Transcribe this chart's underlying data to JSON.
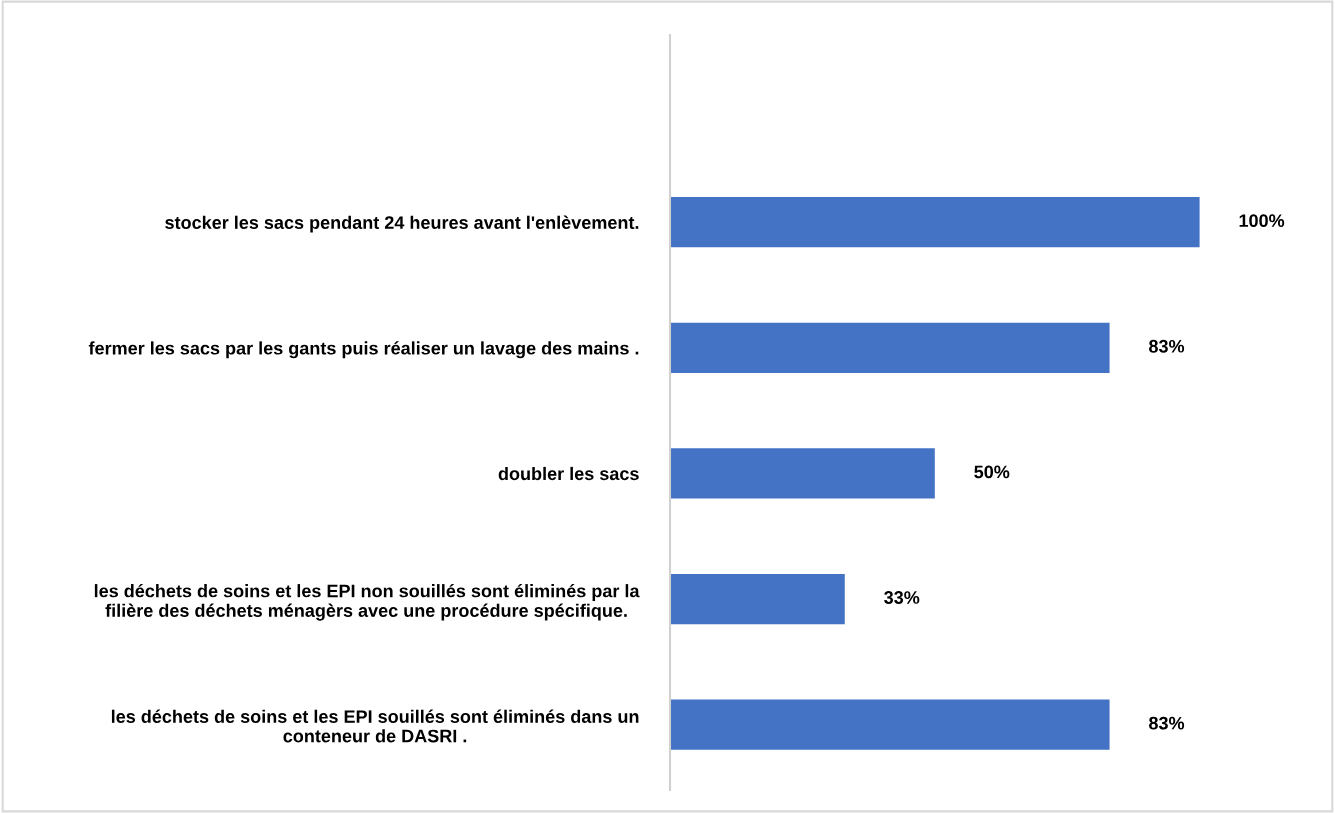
{
  "chart_data": {
    "type": "bar",
    "orientation": "horizontal",
    "categories": [
      "stocker les sacs pendant 24 heures avant l'enlèvement.",
      "fermer les sacs par les gants puis réaliser un lavage des mains .",
      "doubler les sacs",
      "les déchets de soins et les EPI non souillés sont éliminés par la\nfilière des déchets ménagèrs avec une procédure spécifique.",
      "les déchets de soins et les EPI souillés sont éliminés dans un\nconteneur de DASRI ."
    ],
    "values": [
      100,
      83,
      50,
      33,
      83
    ],
    "value_labels": [
      "100%",
      "83%",
      "50%",
      "33%",
      "83%"
    ],
    "color": "#4472c4"
  }
}
